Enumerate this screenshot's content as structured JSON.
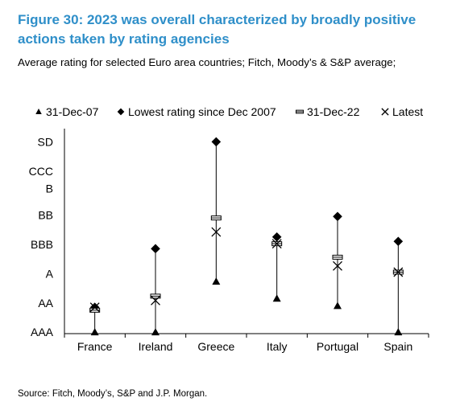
{
  "header": {
    "title": "Figure 30: 2023 was overall characterized by broadly positive actions taken by rating agencies",
    "subtitle": "Average rating for selected Euro area countries; Fitch, Moody’s & S&P average;"
  },
  "footer": {
    "source": "Source: Fitch, Moody’s, S&P and J.P. Morgan."
  },
  "chart_data": {
    "type": "scatter",
    "categories": [
      "France",
      "Ireland",
      "Greece",
      "Italy",
      "Portugal",
      "Spain"
    ],
    "y_tick_labels": [
      "AAA",
      "AA",
      "A",
      "BBB",
      "BB",
      "B",
      "CCC",
      "SD"
    ],
    "y_tick_positions": [
      1,
      2,
      3,
      4,
      5,
      5.9,
      6.5,
      7.5
    ],
    "ylim": [
      0.95,
      7.95
    ],
    "y_inverted": false,
    "grid": false,
    "legend_position": "top",
    "series": [
      {
        "name": "31-Dec-07",
        "marker": "triangle",
        "values": [
          1.0,
          1.0,
          2.73,
          2.15,
          1.9,
          1.0
        ]
      },
      {
        "name": "Lowest rating since Dec 2007",
        "marker": "diamond",
        "values": [
          1.85,
          3.85,
          7.5,
          4.25,
          4.95,
          4.1
        ]
      },
      {
        "name": "31-Dec-22",
        "marker": "dash",
        "values": [
          1.75,
          2.23,
          4.9,
          4.02,
          3.56,
          3.05
        ]
      },
      {
        "name": "Latest",
        "marker": "x",
        "values": [
          1.85,
          2.08,
          4.42,
          4.02,
          3.26,
          3.05
        ]
      }
    ]
  }
}
